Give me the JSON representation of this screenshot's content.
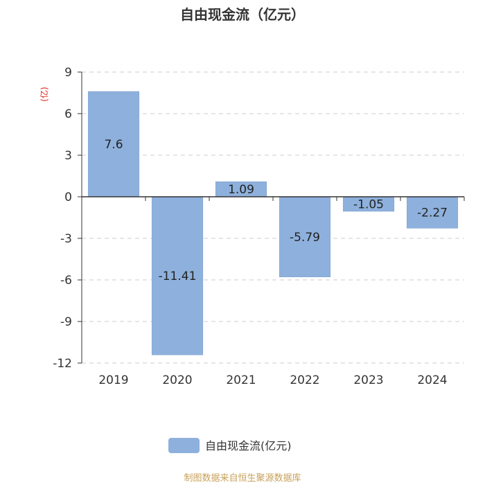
{
  "chart_data": {
    "type": "bar",
    "title": "自由现金流（亿元）",
    "unit_label": "(亿)",
    "categories": [
      "2019",
      "2020",
      "2021",
      "2022",
      "2023",
      "2024"
    ],
    "series": [
      {
        "name": "自由现金流(亿元)",
        "values": [
          7.6,
          -11.41,
          1.09,
          -5.79,
          -1.05,
          -2.27
        ],
        "color": "#8eb0dc"
      }
    ],
    "data_labels": [
      "7.6",
      "-11.41",
      "1.09",
      "-5.79",
      "-1.05",
      "-2.27"
    ],
    "ylim": [
      -12,
      9
    ],
    "yticks": [
      9,
      6,
      3,
      0,
      -3,
      -6,
      -9,
      -12
    ],
    "ytick_labels": [
      "9",
      "6",
      "3",
      "0",
      "-3",
      "-6",
      "-9",
      "-12"
    ],
    "grid": true,
    "legend_position": "bottom-center"
  },
  "source_note": "制图数据来自恒生聚源数据库"
}
